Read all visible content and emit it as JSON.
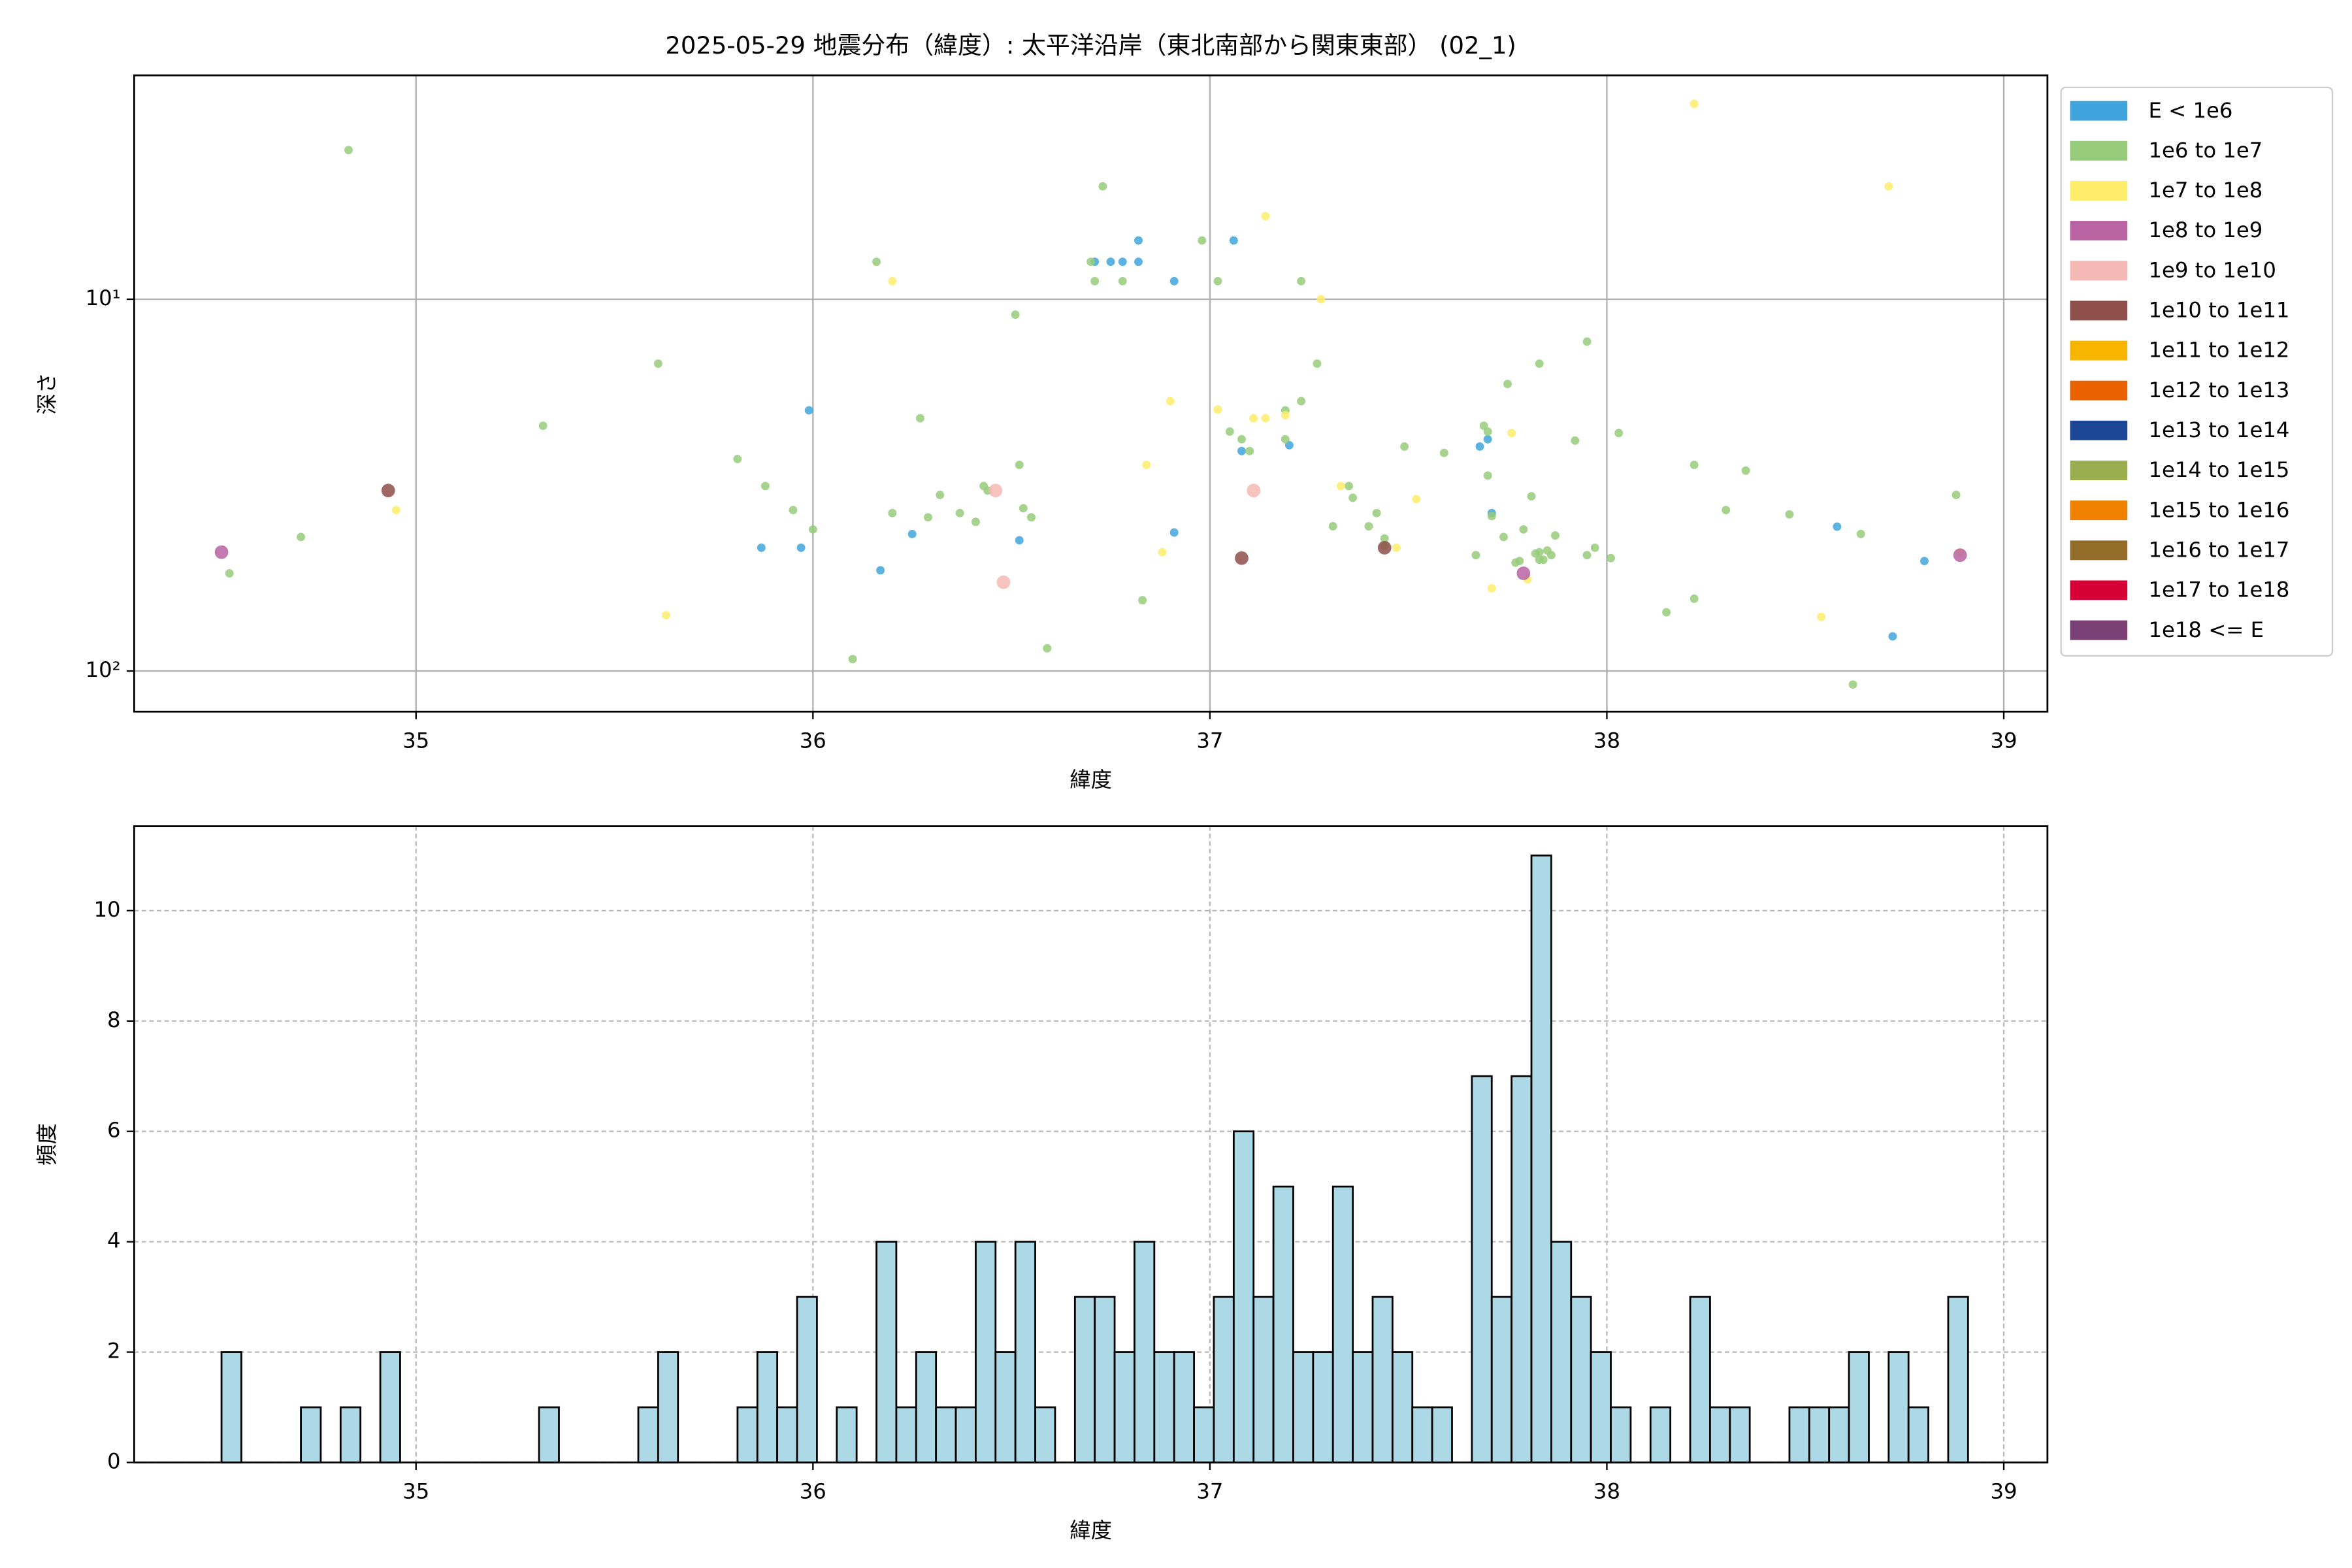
{
  "chart_data": [
    {
      "type": "scatter",
      "title": "2025-05-29 地震分布（緯度）: 太平洋沿岸（東北南部から関東東部） (02_1)",
      "x_label": "緯度",
      "y_label": "深さ",
      "xlim": [
        34.29,
        39.11
      ],
      "xticks": [
        35,
        36,
        37,
        38,
        39
      ],
      "ylim": [
        128.6,
        2.5
      ],
      "ylog": true,
      "yticks": [
        {
          "value": 10,
          "label": "10¹"
        },
        {
          "value": 100,
          "label": "10²"
        }
      ],
      "grid": "solid",
      "legend": "outside upper right",
      "series": [
        {
          "name": "E < 1e6",
          "color": "#3fa4dc",
          "x": [
            35.99,
            35.87,
            35.97,
            36.17,
            36.25,
            36.52,
            36.82,
            36.71,
            36.75,
            36.78,
            36.82,
            36.91,
            37.06,
            37.08,
            37.2,
            36.91,
            37.68,
            37.7,
            37.71,
            38.58,
            38.8,
            38.72
          ],
          "values": [
            19.9,
            46.6,
            46.6,
            53.6,
            42.8,
            44.5,
            6.95,
            7.93,
            7.93,
            7.93,
            7.93,
            8.94,
            6.95,
            25.6,
            24.7,
            42.4,
            24.9,
            23.8,
            37.6,
            40.9,
            50.6,
            80.7
          ]
        },
        {
          "name": "1e6 to 1e7",
          "color": "#97cc7a",
          "x": [
            34.53,
            34.71,
            34.83,
            35.32,
            35.61,
            35.81,
            35.88,
            35.95,
            36.0,
            36.1,
            36.16,
            36.2,
            36.27,
            36.29,
            36.32,
            36.37,
            36.41,
            36.43,
            36.44,
            36.51,
            36.52,
            36.53,
            36.55,
            36.59,
            36.7,
            36.71,
            36.73,
            36.78,
            36.83,
            36.98,
            37.02,
            37.05,
            37.08,
            37.1,
            37.19,
            37.19,
            37.23,
            37.23,
            37.27,
            37.31,
            37.35,
            37.36,
            37.4,
            37.42,
            37.44,
            37.44,
            37.49,
            37.59,
            37.67,
            37.69,
            37.7,
            37.7,
            37.71,
            37.74,
            37.75,
            37.77,
            37.78,
            37.79,
            37.81,
            37.82,
            37.83,
            37.83,
            37.83,
            37.84,
            37.85,
            37.86,
            37.87,
            37.92,
            37.95,
            37.95,
            37.97,
            38.01,
            38.03,
            38.15,
            38.22,
            38.22,
            38.3,
            38.35,
            38.46,
            38.64,
            38.62,
            38.88
          ],
          "values": [
            54.6,
            43.6,
            3.97,
            21.9,
            14.9,
            26.9,
            31.8,
            36.9,
            41.6,
            92.9,
            7.93,
            37.6,
            20.9,
            38.6,
            33.6,
            37.6,
            39.7,
            31.8,
            32.7,
            11.0,
            27.9,
            36.5,
            38.6,
            86.9,
            7.93,
            8.94,
            4.97,
            8.94,
            64.5,
            6.95,
            8.94,
            22.7,
            23.8,
            25.6,
            19.9,
            23.8,
            18.8,
            8.94,
            14.9,
            40.8,
            31.8,
            34.2,
            40.8,
            37.6,
            44.0,
            46.1,
            24.9,
            25.9,
            48.8,
            21.9,
            22.7,
            29.8,
            38.3,
            43.6,
            16.9,
            51.1,
            50.6,
            41.6,
            33.9,
            48.3,
            50.2,
            14.9,
            47.9,
            50.2,
            47.4,
            48.8,
            43.2,
            24.0,
            48.8,
            13.0,
            46.6,
            49.7,
            22.9,
            69.5,
            63.9,
            27.9,
            36.9,
            28.9,
            37.9,
            42.8,
            108.7,
            33.6
          ]
        },
        {
          "name": "1e7 to 1e8",
          "color": "#fded6b",
          "x": [
            34.95,
            35.63,
            36.2,
            36.84,
            36.88,
            36.9,
            37.02,
            37.11,
            37.14,
            37.14,
            37.19,
            37.28,
            37.33,
            37.47,
            37.52,
            37.71,
            37.76,
            37.8,
            38.22,
            38.54,
            38.71,
            38.89
          ],
          "values": [
            36.9,
            70.8,
            8.94,
            27.9,
            47.9,
            18.8,
            19.8,
            20.9,
            20.9,
            5.98,
            20.5,
            10,
            31.8,
            46.6,
            34.5,
            59.9,
            22.9,
            56.7,
            2.98,
            71.5,
            4.97,
            47.9
          ]
        },
        {
          "name": "1e8 to 1e9",
          "color": "#b963a2",
          "x": [
            34.51,
            37.79,
            38.89
          ],
          "values": [
            47.9,
            54.6,
            48.8
          ]
        },
        {
          "name": "1e9 to 1e10",
          "color": "#f4b9b4",
          "x": [
            36.46,
            36.48,
            37.11
          ],
          "values": [
            32.7,
            57.7,
            32.7
          ]
        },
        {
          "name": "1e10 to 1e11",
          "color": "#8f4f4a",
          "x": [
            34.93,
            37.08,
            37.44
          ],
          "values": [
            32.7,
            49.7,
            46.6
          ]
        },
        {
          "name": "1e11 to 1e12",
          "color": "#f8b500",
          "x": [],
          "values": []
        },
        {
          "name": "1e12 to 1e13",
          "color": "#ea6100",
          "x": [],
          "values": []
        },
        {
          "name": "1e13 to 1e14",
          "color": "#1c4796",
          "x": [],
          "values": []
        },
        {
          "name": "1e14 to 1e15",
          "color": "#9aad4f",
          "x": [],
          "values": []
        },
        {
          "name": "1e15 to 1e16",
          "color": "#f08000",
          "x": [],
          "values": []
        },
        {
          "name": "1e16 to 1e17",
          "color": "#956d2b",
          "x": [],
          "values": []
        },
        {
          "name": "1e17 to 1e18",
          "color": "#d70036",
          "x": [],
          "values": []
        },
        {
          "name": "1e18 <= E",
          "color": "#7a3f74",
          "x": [],
          "values": []
        }
      ]
    },
    {
      "type": "histogram",
      "x_label": "緯度",
      "y_label": "頻度",
      "xlim": [
        34.29,
        39.11
      ],
      "xticks": [
        35,
        36,
        37,
        38,
        39
      ],
      "ylim": [
        0,
        11.53
      ],
      "yticks": [
        0,
        2,
        4,
        6,
        8,
        10
      ],
      "grid": "dashed",
      "color": "#add8e6",
      "bins": [
        34.51,
        34.56,
        34.61,
        34.66,
        34.71,
        34.76,
        34.81,
        34.86,
        34.91,
        34.96,
        35.01,
        35.06,
        35.11,
        35.16,
        35.21,
        35.26,
        35.31,
        35.36,
        35.41,
        35.46,
        35.51,
        35.56,
        35.61,
        35.66,
        35.71,
        35.76,
        35.81,
        35.86,
        35.91,
        35.96,
        36.01,
        36.06,
        36.11,
        36.16,
        36.21,
        36.26,
        36.31,
        36.36,
        36.41,
        36.46,
        36.51,
        36.56,
        36.61,
        36.66,
        36.71,
        36.76,
        36.81,
        36.86,
        36.91,
        36.96,
        37.01,
        37.06,
        37.11,
        37.16,
        37.21,
        37.26,
        37.31,
        37.36,
        37.41,
        37.46,
        37.51,
        37.56,
        37.61,
        37.66,
        37.71,
        37.76,
        37.81,
        37.86,
        37.91,
        37.96,
        38.01,
        38.06,
        38.11,
        38.16,
        38.21,
        38.26,
        38.31,
        38.36,
        38.41,
        38.46,
        38.51,
        38.56,
        38.61,
        38.66,
        38.71,
        38.76,
        38.81,
        38.86,
        38.91
      ],
      "values": [
        2,
        0,
        0,
        0,
        1,
        0,
        1,
        0,
        2,
        0,
        0,
        0,
        0,
        0,
        0,
        0,
        1,
        0,
        0,
        0,
        0,
        1,
        2,
        0,
        0,
        0,
        1,
        2,
        1,
        3,
        0,
        1,
        0,
        4,
        1,
        2,
        1,
        1,
        4,
        2,
        4,
        1,
        0,
        3,
        3,
        2,
        4,
        2,
        2,
        1,
        3,
        6,
        3,
        5,
        2,
        2,
        5,
        2,
        3,
        2,
        1,
        1,
        0,
        7,
        3,
        7,
        11,
        4,
        3,
        2,
        1,
        0,
        1,
        0,
        3,
        1,
        1,
        0,
        0,
        1,
        1,
        1,
        2,
        0,
        2,
        1,
        0,
        3
      ]
    }
  ]
}
